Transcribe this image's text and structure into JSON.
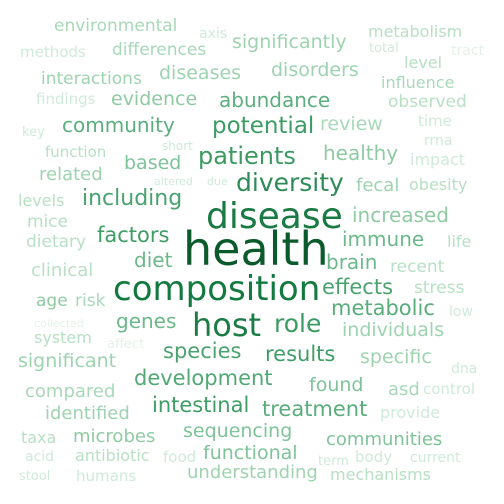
{
  "words": [
    {
      "text": "health",
      "color": "#0b5a2c"
    },
    {
      "text": "disease",
      "color": "#1a7a43"
    },
    {
      "text": "composition",
      "color": "#137a3f"
    },
    {
      "text": "host",
      "color": "#1b7d45"
    },
    {
      "text": "diversity",
      "color": "#2e8b57"
    },
    {
      "text": "role",
      "color": "#3a9a63"
    },
    {
      "text": "patients",
      "color": "#3b9a62"
    },
    {
      "text": "potential",
      "color": "#3d9c65"
    },
    {
      "text": "including",
      "color": "#4aa36f"
    },
    {
      "text": "species",
      "color": "#4aa36f"
    },
    {
      "text": "factors",
      "color": "#3f9d66"
    },
    {
      "text": "effects",
      "color": "#4aa36f"
    },
    {
      "text": "metabolic",
      "color": "#58ad7b"
    },
    {
      "text": "results",
      "color": "#3f9d66"
    },
    {
      "text": "development",
      "color": "#52a975"
    },
    {
      "text": "treatment",
      "color": "#58ad7b"
    },
    {
      "text": "intestinal",
      "color": "#3f9d66"
    },
    {
      "text": "abundance",
      "color": "#5cae7e"
    },
    {
      "text": "community",
      "color": "#5cae7e"
    },
    {
      "text": "healthy",
      "color": "#8fcaa3"
    },
    {
      "text": "increased",
      "color": "#8fcaa3"
    },
    {
      "text": "immune",
      "color": "#6bb98a"
    },
    {
      "text": "brain",
      "color": "#6bb98a"
    },
    {
      "text": "diet",
      "color": "#6bb98a"
    },
    {
      "text": "genes",
      "color": "#6bb98a"
    },
    {
      "text": "individuals",
      "color": "#9ed3b0"
    },
    {
      "text": "specific",
      "color": "#9ed3b0"
    },
    {
      "text": "found",
      "color": "#7fc39a"
    },
    {
      "text": "sequencing",
      "color": "#7fc39a"
    },
    {
      "text": "functional",
      "color": "#7fc39a"
    },
    {
      "text": "communities",
      "color": "#7fc39a"
    },
    {
      "text": "understanding",
      "color": "#9ed3b0"
    },
    {
      "text": "significantly",
      "color": "#9ed3b0"
    },
    {
      "text": "disorders",
      "color": "#9ed3b0"
    },
    {
      "text": "diseases",
      "color": "#9ed3b0"
    },
    {
      "text": "evidence",
      "color": "#8fcaa3"
    },
    {
      "text": "review",
      "color": "#a8d8b8"
    },
    {
      "text": "based",
      "color": "#7fc39a"
    },
    {
      "text": "related",
      "color": "#9ed3b0"
    },
    {
      "text": "significant",
      "color": "#9ed3b0"
    },
    {
      "text": "compared",
      "color": "#a8d8b8"
    },
    {
      "text": "identified",
      "color": "#9ed3b0"
    },
    {
      "text": "microbes",
      "color": "#8fcaa3"
    },
    {
      "text": "environmental",
      "color": "#a8d8b8"
    },
    {
      "text": "differences",
      "color": "#a8d8b8"
    },
    {
      "text": "interactions",
      "color": "#9ed3b0"
    },
    {
      "text": "metabolism",
      "color": "#b8e0c4"
    },
    {
      "text": "observed",
      "color": "#b8e0c4"
    },
    {
      "text": "influence",
      "color": "#a8d8b8"
    },
    {
      "text": "fecal",
      "color": "#9ed3b0"
    },
    {
      "text": "obesity",
      "color": "#b8e0c4"
    },
    {
      "text": "clinical",
      "color": "#b8e0c4"
    },
    {
      "text": "recent",
      "color": "#b8e0c4"
    },
    {
      "text": "stress",
      "color": "#b8e0c4"
    },
    {
      "text": "mice",
      "color": "#b8e0c4"
    },
    {
      "text": "dietary",
      "color": "#b8e0c4"
    },
    {
      "text": "life",
      "color": "#b8e0c4"
    },
    {
      "text": "levels",
      "color": "#b8e0c4"
    },
    {
      "text": "findings",
      "color": "#cfeadb"
    },
    {
      "text": "methods",
      "color": "#cfeadb"
    },
    {
      "text": "axis",
      "color": "#cfeadb"
    },
    {
      "text": "total",
      "color": "#cfeadb"
    },
    {
      "text": "tract",
      "color": "#e3f2e8"
    },
    {
      "text": "level",
      "color": "#b8e0c4"
    },
    {
      "text": "time",
      "color": "#cfeadb"
    },
    {
      "text": "key",
      "color": "#cfeadb"
    },
    {
      "text": "short",
      "color": "#cfeadb"
    },
    {
      "text": "rrna",
      "color": "#cfeadb"
    },
    {
      "text": "impact",
      "color": "#cfeadb"
    },
    {
      "text": "function",
      "color": "#b8e0c4"
    },
    {
      "text": "altered",
      "color": "#cfeadb"
    },
    {
      "text": "due",
      "color": "#cfeadb"
    },
    {
      "text": "age",
      "color": "#8fcaa3"
    },
    {
      "text": "risk",
      "color": "#a8d8b8"
    },
    {
      "text": "low",
      "color": "#cfeadb"
    },
    {
      "text": "collected",
      "color": "#e3f2e8"
    },
    {
      "text": "system",
      "color": "#b8e0c4"
    },
    {
      "text": "affect",
      "color": "#e3f2e8"
    },
    {
      "text": "dna",
      "color": "#cfeadb"
    },
    {
      "text": "asd",
      "color": "#a8d8b8"
    },
    {
      "text": "control",
      "color": "#cfeadb"
    },
    {
      "text": "provide",
      "color": "#cfeadb"
    },
    {
      "text": "taxa",
      "color": "#b8e0c4"
    },
    {
      "text": "acid",
      "color": "#cfeadb"
    },
    {
      "text": "antibiotic",
      "color": "#b8e0c4"
    },
    {
      "text": "food",
      "color": "#cfeadb"
    },
    {
      "text": "body",
      "color": "#cfeadb"
    },
    {
      "text": "current",
      "color": "#cfeadb"
    },
    {
      "text": "term",
      "color": "#cfeadb"
    },
    {
      "text": "stool",
      "color": "#cfeadb"
    },
    {
      "text": "humans",
      "color": "#cfeadb"
    },
    {
      "text": "mechanisms",
      "color": "#b8e0c4"
    }
  ]
}
